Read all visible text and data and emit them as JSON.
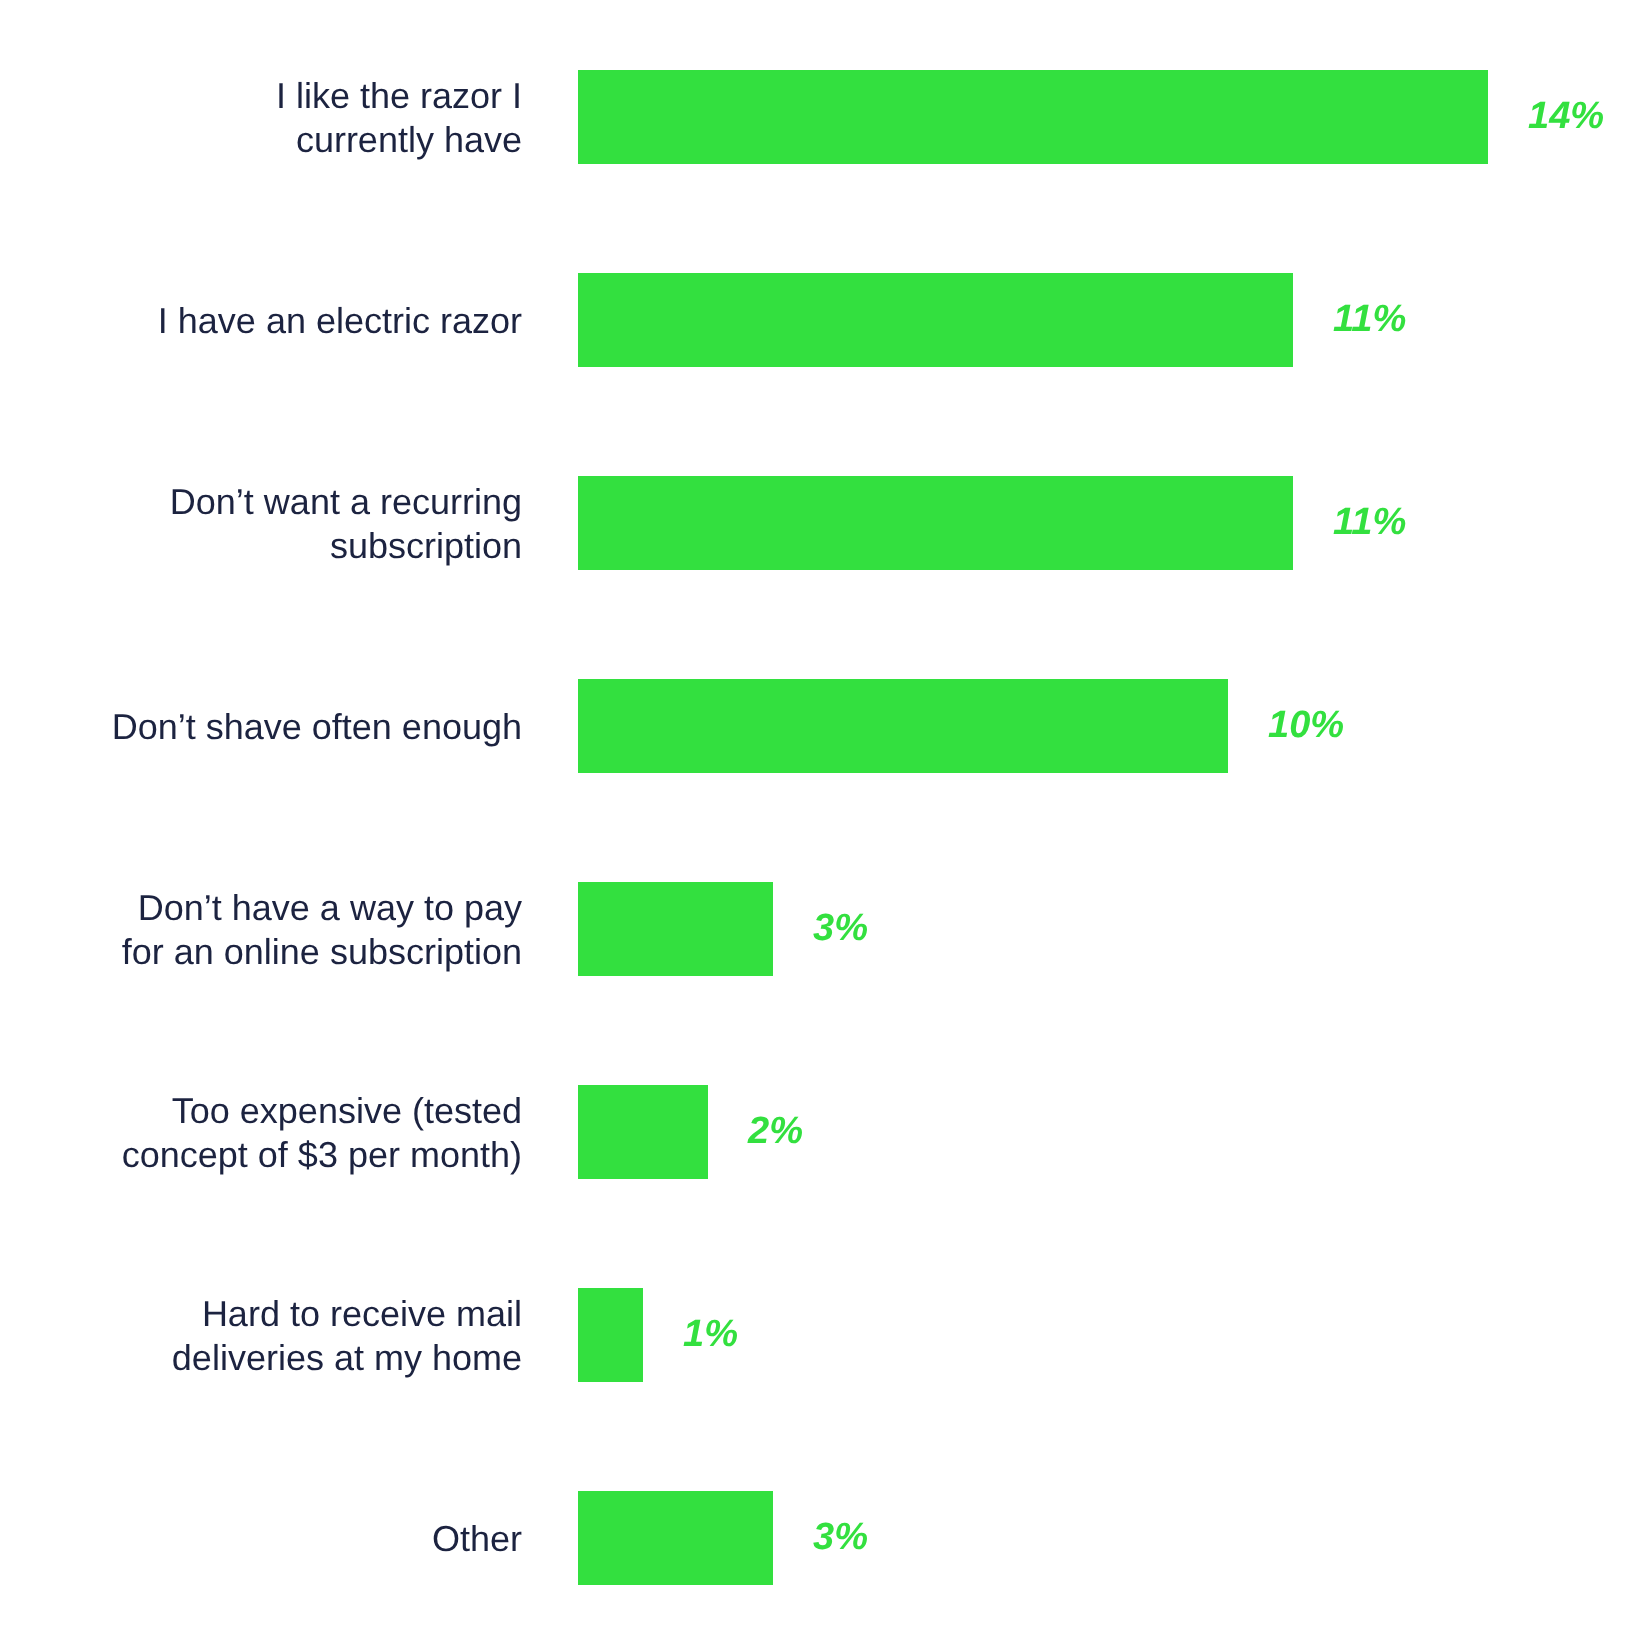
{
  "chart_data": {
    "type": "bar",
    "orientation": "horizontal",
    "categories": [
      "I like the razor I currently have",
      "I have an electric razor",
      "Don’t want a recurring subscription",
      "Don’t shave often enough",
      "Don’t have a way to pay for an online subscription",
      "Too expensive (tested concept of $3 per month)",
      "Hard to receive mail deliveries at my home",
      "Other"
    ],
    "values": [
      14,
      11,
      11,
      10,
      3,
      2,
      1,
      3
    ],
    "value_labels": [
      "14%",
      "11%",
      "11%",
      "10%",
      "3%",
      "2%",
      "1%",
      "3%"
    ],
    "color": "#33e03f",
    "grid": false,
    "legend": false
  }
}
